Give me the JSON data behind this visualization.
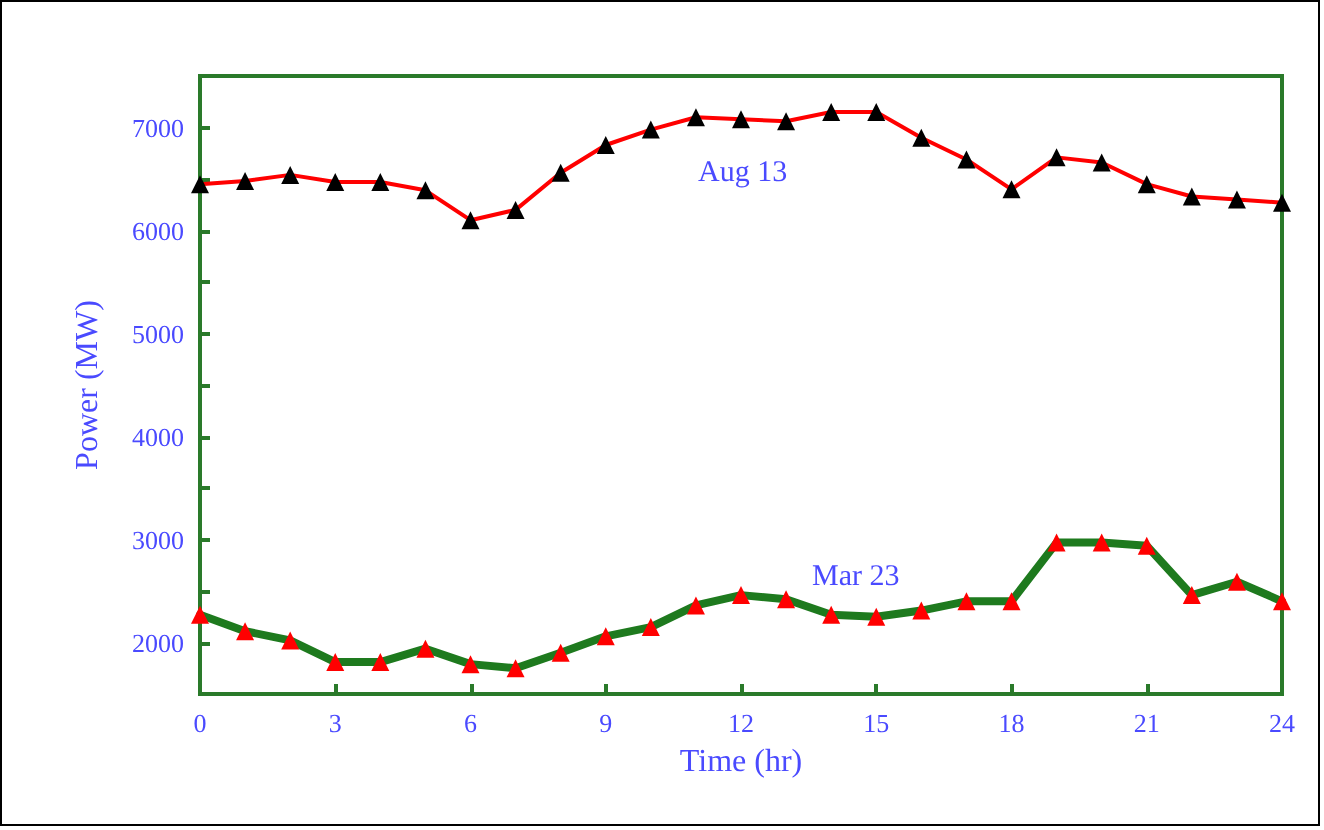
{
  "chart_data": {
    "type": "line",
    "xlabel": "Time (hr)",
    "ylabel": "Power (MW)",
    "x": [
      0,
      1,
      2,
      3,
      4,
      5,
      6,
      7,
      8,
      9,
      10,
      11,
      12,
      13,
      14,
      15,
      16,
      17,
      18,
      19,
      20,
      21,
      22,
      23,
      24
    ],
    "series": [
      {
        "color": "#ff0000",
        "values": [
          6450,
          6480,
          6540,
          6470,
          6470,
          6390,
          6100,
          6200,
          6560,
          6830,
          6980,
          7100,
          7080,
          7060,
          7150,
          7150,
          6900,
          6690,
          6400,
          6710,
          6660,
          6450,
          6330,
          6300,
          6270
        ]
      },
      {
        "color": "#1e7a1e",
        "values": [
          2270,
          2110,
          2020,
          1810,
          1810,
          1940,
          1790,
          1750,
          1900,
          2060,
          2150,
          2360,
          2460,
          2420,
          2270,
          2250,
          2310,
          2400,
          2400,
          2970,
          2970,
          2940,
          2460,
          2590,
          2400
        ]
      }
    ],
    "annotations": [
      "Aug 13",
      "Mar 23"
    ],
    "xlim": [
      0,
      24
    ],
    "xticks": [
      0,
      3,
      6,
      9,
      12,
      15,
      18,
      21,
      24
    ],
    "ylim": [
      1500,
      7500
    ],
    "yticks": [
      {
        "value": 1500,
        "label": null
      },
      2000,
      {
        "value": 2500,
        "label": null
      },
      3000,
      {
        "value": 3500,
        "label": null
      },
      4000,
      {
        "value": 4500,
        "label": null
      },
      5000,
      {
        "value": 5500,
        "label": null
      },
      6000,
      {
        "value": 6500,
        "label": null
      },
      7000,
      {
        "value": 7500,
        "label": null
      }
    ],
    "grid": false,
    "marker": "triangle",
    "line_style": "solid"
  }
}
